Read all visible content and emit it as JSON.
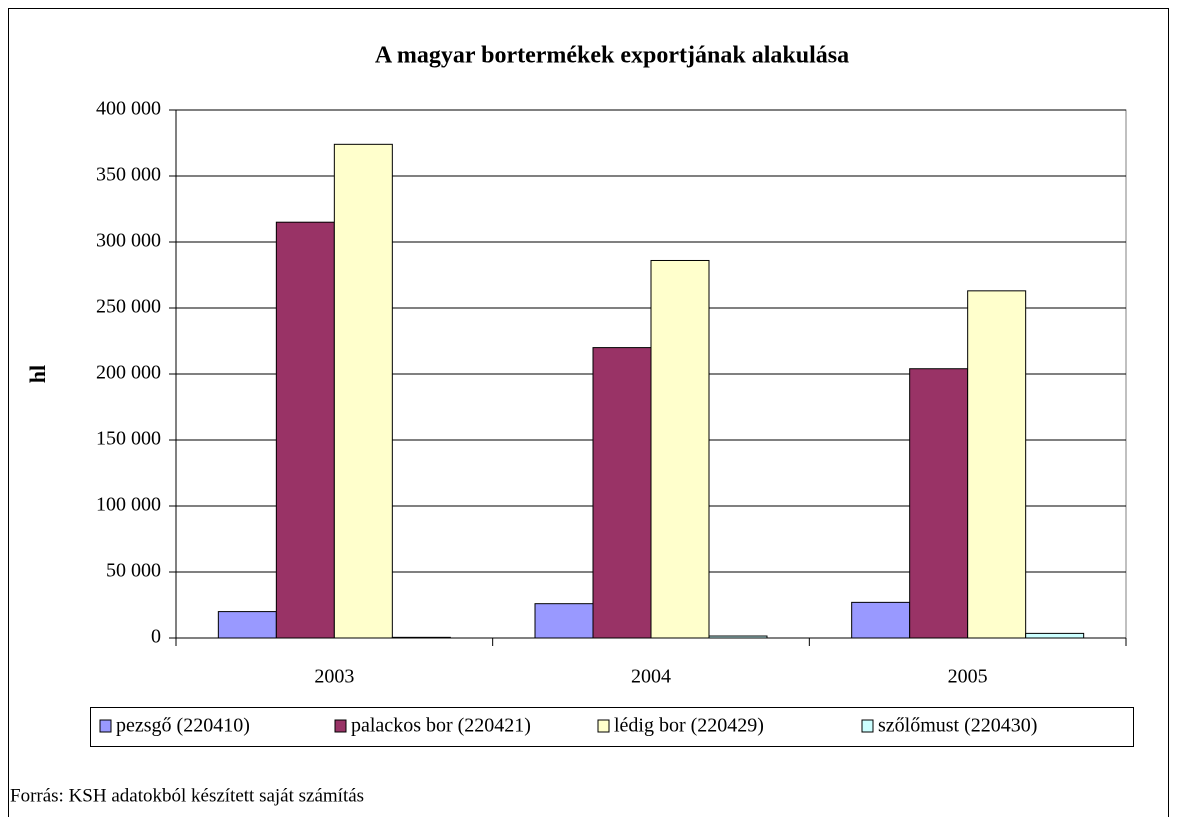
{
  "chart_data": {
    "type": "bar",
    "title": "A magyar bortermékek exportjának alakulása",
    "y_label": "hl",
    "source": "Forrás: KSH adatokból készített saját számítás",
    "categories": [
      "2003",
      "2004",
      "2005"
    ],
    "series": [
      {
        "name": "pezsgő (220410)",
        "color": "#9999ff",
        "values": [
          20000,
          26000,
          27000
        ]
      },
      {
        "name": "palackos bor (220421)",
        "color": "#993366",
        "values": [
          315000,
          220000,
          204000
        ]
      },
      {
        "name": "lédig bor (220429)",
        "color": "#ffffcc",
        "values": [
          374000,
          286000,
          263000
        ]
      },
      {
        "name": "szőlőmust (220430)",
        "color": "#ccffff",
        "values": [
          500,
          1500,
          3500
        ]
      }
    ],
    "ylim": [
      0,
      400000
    ],
    "yticks": [
      0,
      {
        "value": 50000,
        "label": "50 000"
      },
      {
        "value": 100000,
        "label": "100 000"
      },
      {
        "value": 150000,
        "label": "150 000"
      },
      {
        "value": 200000,
        "label": "200 000"
      },
      {
        "value": 250000,
        "label": "250 000"
      },
      {
        "value": 300000,
        "label": "300 000"
      },
      {
        "value": 350000,
        "label": "350 000"
      },
      {
        "value": 400000,
        "label": "400 000"
      }
    ],
    "grid": true,
    "legend": "bottom"
  }
}
